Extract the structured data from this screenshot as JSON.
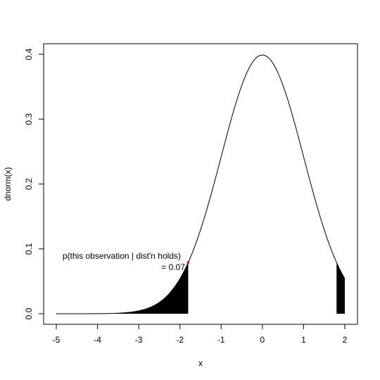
{
  "chart_data": {
    "type": "line",
    "title": "",
    "xlabel": "x",
    "ylabel": "dnorm(x)",
    "xlim": [
      -5,
      2
    ],
    "ylim": [
      0,
      0.4
    ],
    "grid": false,
    "x_ticks": [
      -5,
      -4,
      -3,
      -2,
      -1,
      0,
      1,
      2
    ],
    "x_tick_labels": [
      "-5",
      "-4",
      "-3",
      "-2",
      "-1",
      "0",
      "1",
      "2"
    ],
    "y_ticks": [
      0.0,
      0.1,
      0.2,
      0.3,
      0.4
    ],
    "y_tick_labels": [
      "0.0",
      "0.1",
      "0.2",
      "0.3",
      "0.4"
    ],
    "series": [
      {
        "function": "dnorm",
        "x": [
          -5,
          -4.5,
          -4,
          -3.5,
          -3,
          -2.5,
          -2,
          -1.8,
          -1.5,
          -1,
          -0.5,
          0,
          0.5,
          1,
          1.5,
          1.8,
          2
        ],
        "values": [
          1.5e-06,
          1.6e-05,
          0.00013,
          0.00087,
          0.0044,
          0.0175,
          0.054,
          0.079,
          0.1295,
          0.242,
          0.352,
          0.399,
          0.352,
          0.242,
          0.1295,
          0.079,
          0.054
        ],
        "color": "#000000"
      }
    ],
    "shaded_regions": [
      {
        "from": -5,
        "to": -1.8,
        "color": "#000000"
      },
      {
        "from": 1.8,
        "to": 2,
        "color": "#000000"
      }
    ],
    "marked_point": {
      "x": -1.8,
      "y": 0.079,
      "color": "#cc0000"
    },
    "annotation": {
      "line1": "p(this observation | dist'n holds)",
      "line2": "=  0.07"
    }
  }
}
